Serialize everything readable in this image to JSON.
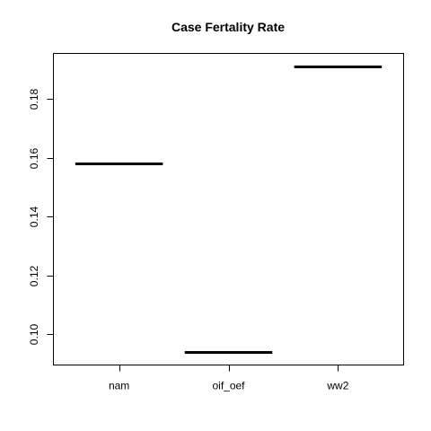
{
  "chart_data": {
    "type": "bar",
    "title": "Case Fertality Rate",
    "xlabel": "",
    "ylabel": "",
    "categories": [
      "nam",
      "oif_oef",
      "ww2"
    ],
    "values": [
      0.158,
      0.094,
      0.191
    ],
    "ylim": [
      0.0896,
      0.1954
    ],
    "yticks": [
      0.1,
      0.12,
      0.14,
      0.16,
      0.18
    ],
    "ytick_labels": [
      "0.10",
      "0.12",
      "0.14",
      "0.16",
      "0.18"
    ],
    "grid": false,
    "legend": "none"
  }
}
